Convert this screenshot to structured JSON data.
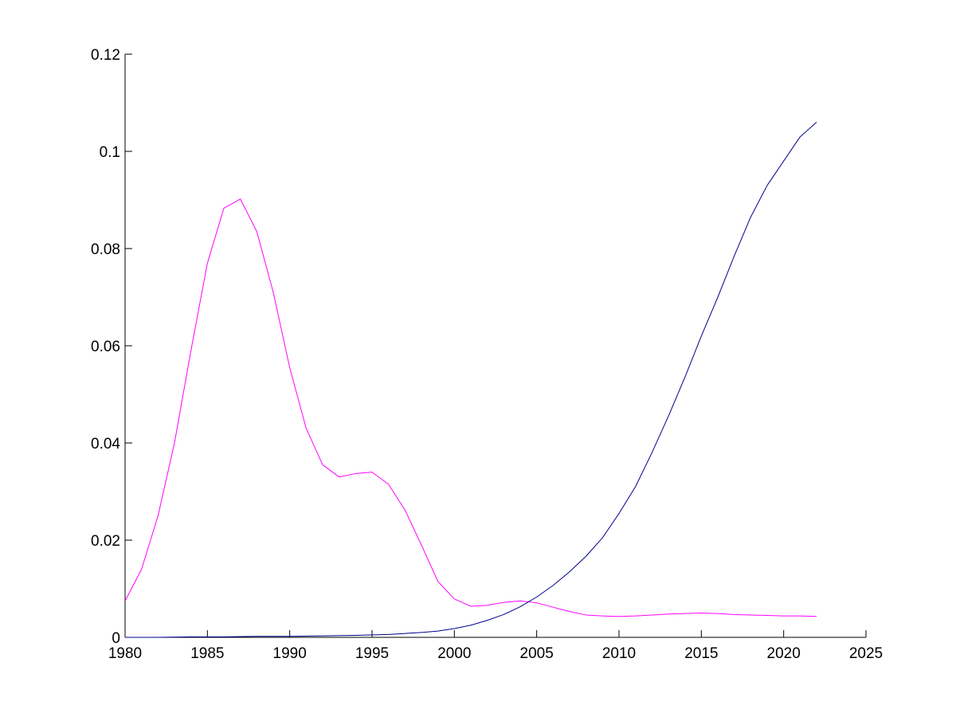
{
  "chart_data": {
    "type": "line",
    "xlim": [
      1980,
      2025
    ],
    "ylim": [
      0,
      0.12
    ],
    "grid": false,
    "x_ticks": [
      "1980",
      "1985",
      "1990",
      "1995",
      "2000",
      "2005",
      "2010",
      "2015",
      "2020",
      "2025"
    ],
    "y_ticks": [
      "0",
      "0.02",
      "0.04",
      "0.06",
      "0.08",
      "0.1",
      "0.12"
    ],
    "series": [
      {
        "color": "#ff00ff",
        "x": [
          1980,
          1981,
          1982,
          1983,
          1984,
          1985,
          1986,
          1987,
          1988,
          1989,
          1990,
          1991,
          1992,
          1993,
          1994,
          1995,
          1996,
          1997,
          1998,
          1999,
          2000,
          2001,
          2002,
          2003,
          2004,
          2005,
          2006,
          2007,
          2008,
          2009,
          2010,
          2011,
          2012,
          2013,
          2014,
          2015,
          2016,
          2017,
          2018,
          2019,
          2020,
          2021,
          2022
        ],
        "y": [
          0.0075,
          0.014,
          0.025,
          0.04,
          0.059,
          0.077,
          0.0883,
          0.0902,
          0.0835,
          0.071,
          0.0555,
          0.043,
          0.0355,
          0.033,
          0.0337,
          0.034,
          0.0315,
          0.0262,
          0.019,
          0.0115,
          0.0079,
          0.0064,
          0.0066,
          0.0072,
          0.0075,
          0.0071,
          0.0062,
          0.0053,
          0.0046,
          0.0044,
          0.0043,
          0.0044,
          0.0046,
          0.0048,
          0.0049,
          0.005,
          0.0049,
          0.0047,
          0.0046,
          0.0045,
          0.0044,
          0.0044,
          0.0043
        ]
      },
      {
        "color": "#00008b",
        "x": [
          1980,
          1982,
          1984,
          1986,
          1988,
          1990,
          1992,
          1994,
          1996,
          1998,
          1999,
          2000,
          2001,
          2002,
          2003,
          2004,
          2005,
          2006,
          2007,
          2008,
          2009,
          2010,
          2011,
          2012,
          2013,
          2014,
          2015,
          2016,
          2017,
          2018,
          2019,
          2020,
          2021,
          2022
        ],
        "y": [
          0.0,
          0.0,
          0.0001,
          0.0001,
          0.0002,
          0.0002,
          0.0003,
          0.0004,
          0.0006,
          0.001,
          0.0013,
          0.0018,
          0.0025,
          0.0035,
          0.0047,
          0.0063,
          0.0083,
          0.0107,
          0.0135,
          0.0167,
          0.0205,
          0.0255,
          0.031,
          0.038,
          0.0455,
          0.0535,
          0.062,
          0.07,
          0.0785,
          0.0865,
          0.093,
          0.098,
          0.103,
          0.106
        ]
      }
    ]
  }
}
